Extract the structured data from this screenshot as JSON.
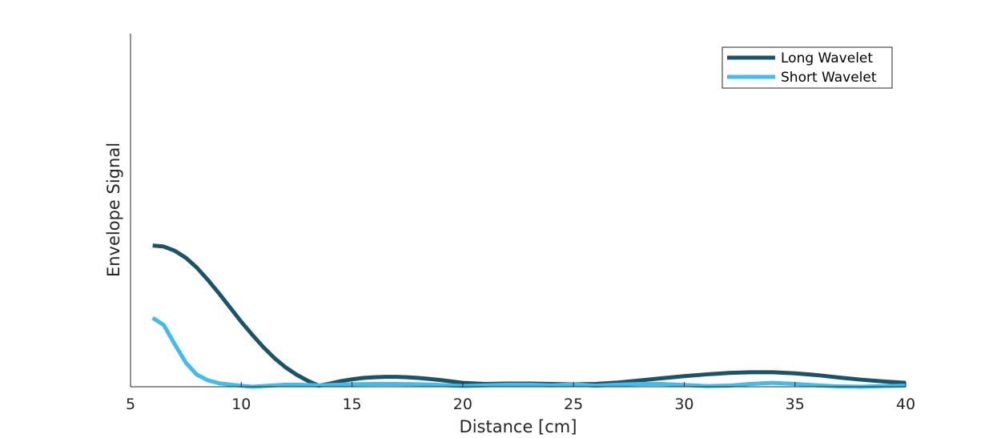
{
  "chart_data": {
    "type": "line",
    "title": "",
    "xlabel": "Distance [cm]",
    "ylabel": "Envelope Signal",
    "xlim": [
      5,
      40
    ],
    "ylim": [
      0,
      1
    ],
    "xticks": [
      5,
      10,
      15,
      20,
      25,
      30,
      35,
      40
    ],
    "yticks": [],
    "grid": false,
    "legend": "top-right",
    "series": [
      {
        "name": "Long Wavelet",
        "color": "#1a5468",
        "x": [
          6,
          6.5,
          7,
          7.5,
          8,
          8.5,
          9,
          9.5,
          10,
          10.5,
          11,
          11.5,
          12,
          12.5,
          13,
          13.5,
          14,
          14.5,
          15,
          15.5,
          16,
          16.5,
          17,
          17.5,
          18,
          18.5,
          19,
          19.5,
          20,
          21,
          22,
          23,
          24,
          25,
          26,
          27,
          28,
          29,
          30,
          31,
          32,
          33,
          34,
          35,
          36,
          37,
          38,
          39,
          40
        ],
        "y": [
          0.4,
          0.397,
          0.385,
          0.365,
          0.337,
          0.302,
          0.264,
          0.224,
          0.184,
          0.147,
          0.112,
          0.081,
          0.055,
          0.034,
          0.017,
          0.003,
          0.009,
          0.016,
          0.021,
          0.025,
          0.027,
          0.028,
          0.028,
          0.027,
          0.025,
          0.022,
          0.019,
          0.015,
          0.011,
          0.008,
          0.009,
          0.009,
          0.008,
          0.007,
          0.008,
          0.012,
          0.018,
          0.024,
          0.03,
          0.035,
          0.039,
          0.041,
          0.041,
          0.038,
          0.033,
          0.026,
          0.02,
          0.015,
          0.011
        ]
      },
      {
        "name": "Short Wavelet",
        "color": "#3fbdee",
        "x": [
          6,
          6.5,
          7,
          7.5,
          8,
          8.5,
          9,
          9.5,
          10,
          10.5,
          11,
          11.5,
          12,
          12.5,
          13,
          13.5,
          14,
          14.5,
          15,
          16,
          17,
          18,
          19,
          20,
          21,
          22,
          23,
          24,
          25,
          26,
          27,
          28,
          29,
          30,
          31,
          32,
          33,
          34,
          35,
          36,
          37,
          38,
          39,
          40
        ],
        "y": [
          0.195,
          0.175,
          0.12,
          0.068,
          0.034,
          0.018,
          0.01,
          0.006,
          0.003,
          0.0,
          0.002,
          0.004,
          0.006,
          0.006,
          0.005,
          0.004,
          0.005,
          0.006,
          0.007,
          0.008,
          0.008,
          0.007,
          0.005,
          0.002,
          0.004,
          0.006,
          0.006,
          0.004,
          0.007,
          0.003,
          0.006,
          0.008,
          0.008,
          0.005,
          0.002,
          0.003,
          0.008,
          0.011,
          0.008,
          0.004,
          0.001,
          0.0,
          0.002,
          0.003
        ]
      }
    ]
  }
}
